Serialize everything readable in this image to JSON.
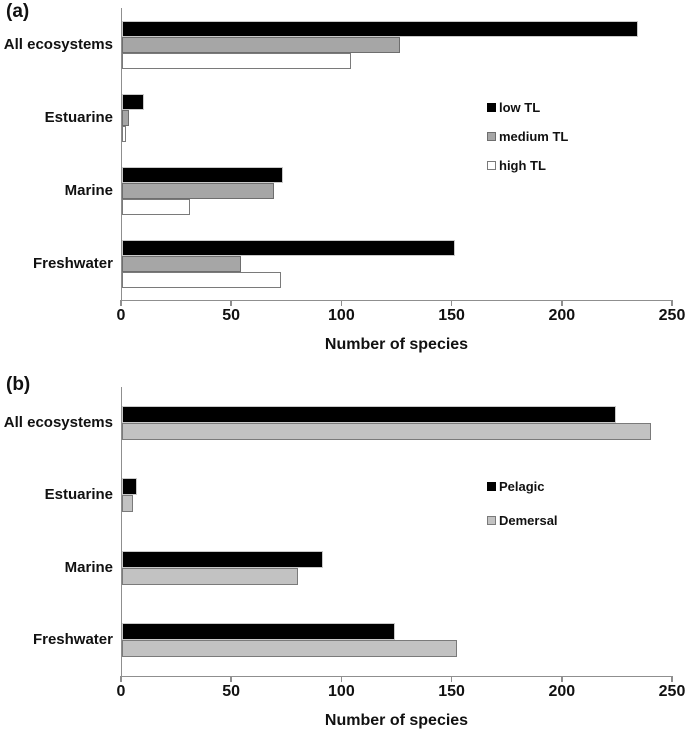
{
  "figure_title": "",
  "axis_color": "#8f8f8f",
  "background_color": "#ffffff",
  "chart_data": [
    {
      "type": "bar",
      "orientation": "horizontal",
      "panel_label": "(a)",
      "xlabel": "Number of species",
      "xlim": [
        0,
        250
      ],
      "x_ticks": [
        0,
        50,
        100,
        150,
        200,
        250
      ],
      "grid": "off",
      "legend_position": "inside-right",
      "categories": [
        "All ecosystems",
        "Estuarine",
        "Marine",
        "Freshwater"
      ],
      "series": [
        {
          "name": "low TL",
          "fill": "#000000",
          "border": "#c9c9c9",
          "values": [
            234,
            10,
            73,
            151
          ]
        },
        {
          "name": "medium TL",
          "fill": "#a6a6a6",
          "border": "#6e6e6e",
          "values": [
            126,
            3,
            69,
            54
          ]
        },
        {
          "name": "high TL",
          "fill": "#ffffff",
          "border": "#7a7a7a",
          "values": [
            104,
            2,
            31,
            72
          ]
        }
      ]
    },
    {
      "type": "bar",
      "orientation": "horizontal",
      "panel_label": "(b)",
      "xlabel": "Number of species",
      "xlim": [
        0,
        250
      ],
      "x_ticks": [
        0,
        50,
        100,
        150,
        200,
        250
      ],
      "grid": "off",
      "legend_position": "inside-right",
      "categories": [
        "All ecosystems",
        "Estuarine",
        "Marine",
        "Freshwater"
      ],
      "series": [
        {
          "name": "Pelagic",
          "fill": "#000000",
          "border": "#c9c9c9",
          "values": [
            224,
            7,
            91,
            124
          ]
        },
        {
          "name": "Demersal",
          "fill": "#c2c2c2",
          "border": "#7a7a7a",
          "values": [
            240,
            5,
            80,
            152
          ]
        }
      ]
    }
  ]
}
